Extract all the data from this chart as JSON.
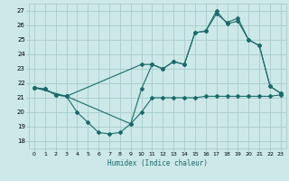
{
  "xlabel": "Humidex (Indice chaleur)",
  "bg_color": "#cce8e8",
  "grid_color": "#aacccc",
  "line_color": "#1a6b6b",
  "xlim": [
    -0.5,
    23.5
  ],
  "ylim": [
    17.5,
    27.5
  ],
  "xticks": [
    0,
    1,
    2,
    3,
    4,
    5,
    6,
    7,
    8,
    9,
    10,
    11,
    12,
    13,
    14,
    15,
    16,
    17,
    18,
    19,
    20,
    21,
    22,
    23
  ],
  "yticks": [
    18,
    19,
    20,
    21,
    22,
    23,
    24,
    25,
    26,
    27
  ],
  "line1_x": [
    0,
    1,
    2,
    3,
    4,
    5,
    6,
    7,
    8,
    9,
    10,
    11,
    12,
    13,
    14,
    15,
    16,
    17,
    18,
    19,
    20,
    21,
    22,
    23
  ],
  "line1_y": [
    21.7,
    21.6,
    21.2,
    21.1,
    20.0,
    19.3,
    18.6,
    18.5,
    18.6,
    19.2,
    20.0,
    21.0,
    21.0,
    21.0,
    21.0,
    21.0,
    21.1,
    21.1,
    21.1,
    21.1,
    21.1,
    21.1,
    21.1,
    21.2
  ],
  "line2_x": [
    0,
    1,
    2,
    3,
    10,
    11,
    12,
    13,
    14,
    15,
    16,
    17,
    18,
    19,
    20,
    21,
    22,
    23
  ],
  "line2_y": [
    21.7,
    21.6,
    21.2,
    21.1,
    23.3,
    23.3,
    23.0,
    23.5,
    23.3,
    25.5,
    25.6,
    27.0,
    26.1,
    26.3,
    25.0,
    24.6,
    21.8,
    21.3
  ],
  "line3_x": [
    0,
    3,
    9,
    10,
    11,
    12,
    13,
    14,
    15,
    16,
    17,
    18,
    19,
    20,
    21,
    22,
    23
  ],
  "line3_y": [
    21.7,
    21.1,
    19.2,
    21.6,
    23.3,
    23.0,
    23.5,
    23.3,
    25.5,
    25.6,
    26.8,
    26.2,
    26.5,
    25.0,
    24.6,
    21.8,
    21.3
  ]
}
